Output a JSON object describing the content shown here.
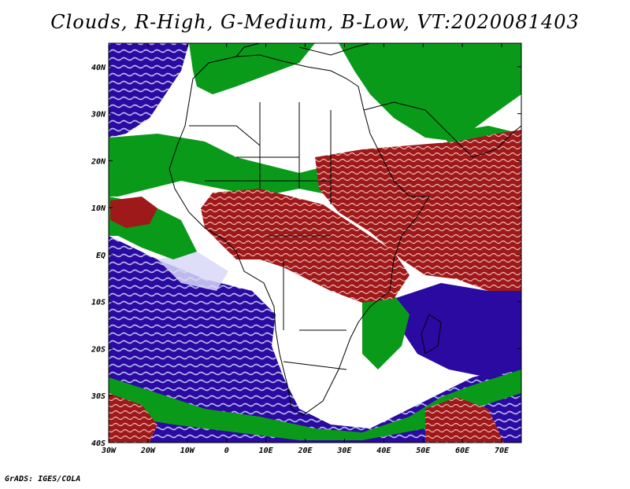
{
  "title": "Clouds, R-High, G-Medium, B-Low, VT:2020081403",
  "credit": "GrADS: IGES/COLA",
  "map": {
    "region": "Africa, Atlantic and Indian Ocean",
    "lon_range": [
      -30,
      75
    ],
    "lat_range": [
      -40,
      45
    ],
    "lat_labels": [
      "40N",
      "30N",
      "20N",
      "10N",
      "EQ",
      "10S",
      "20S",
      "30S",
      "40S"
    ],
    "lon_labels": [
      "30W",
      "20W",
      "10W",
      "0",
      "10E",
      "20E",
      "30E",
      "40E",
      "50E",
      "60E",
      "70E"
    ],
    "cloud_colors": {
      "high": "#9e1a1a",
      "high_light": "#f3b9b9",
      "medium": "#0a9a1a",
      "low": "#2a0aa0",
      "low_light": "#b8b8f0"
    }
  }
}
